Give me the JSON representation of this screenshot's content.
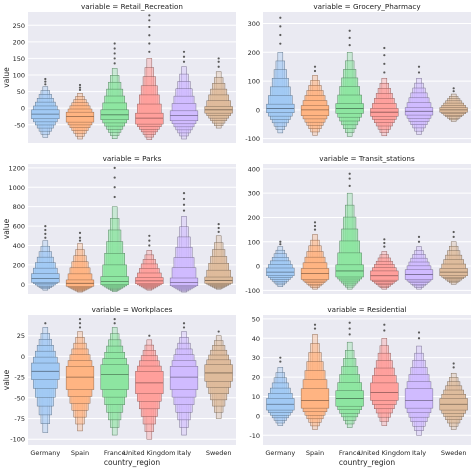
{
  "chart_data": [
    {
      "type": "boxen",
      "title": "variable = Retail_Recreation",
      "categories": [
        "Germany",
        "Spain",
        "France",
        "United Kingdom",
        "Italy",
        "Sweden"
      ],
      "ylabel": "value",
      "xlabel": "",
      "ylim": [
        -105,
        290
      ],
      "yticks": [
        -50,
        0,
        50,
        100,
        150,
        200,
        250
      ],
      "series": [
        {
          "median": -18,
          "q1": -32,
          "q3": -5,
          "lo": -88,
          "hi": 65,
          "outliers": [
            72,
            80,
            88
          ]
        },
        {
          "median": -25,
          "q1": -42,
          "q3": -12,
          "lo": -93,
          "hi": 45,
          "outliers": [
            55,
            62,
            70
          ]
        },
        {
          "median": -20,
          "q1": -35,
          "q3": -5,
          "lo": -92,
          "hi": 120,
          "outliers": [
            135,
            150,
            165,
            180,
            195
          ]
        },
        {
          "median": -30,
          "q1": -48,
          "q3": -15,
          "lo": -95,
          "hi": 150,
          "outliers": [
            170,
            195,
            220,
            245,
            265,
            280
          ]
        },
        {
          "median": -22,
          "q1": -38,
          "q3": -8,
          "lo": -93,
          "hi": 125,
          "outliers": [
            140,
            155,
            170
          ]
        },
        {
          "median": -5,
          "q1": -15,
          "q3": 5,
          "lo": -60,
          "hi": 110,
          "outliers": [
            125,
            140,
            150
          ]
        }
      ]
    },
    {
      "type": "boxen",
      "title": "variable = Grocery_Pharmacy",
      "categories": [
        "Germany",
        "Spain",
        "France",
        "United Kingdom",
        "Italy",
        "Sweden"
      ],
      "ylabel": "",
      "xlabel": "",
      "ylim": [
        -115,
        340
      ],
      "yticks": [
        -100,
        0,
        100,
        200,
        300
      ],
      "series": [
        {
          "median": 5,
          "q1": -10,
          "q3": 20,
          "lo": -80,
          "hi": 200,
          "outliers": [
            230,
            260,
            290,
            320
          ]
        },
        {
          "median": 0,
          "q1": -20,
          "q3": 15,
          "lo": -88,
          "hi": 120,
          "outliers": [
            135,
            150
          ]
        },
        {
          "median": 5,
          "q1": -12,
          "q3": 22,
          "lo": -92,
          "hi": 200,
          "outliers": [
            225,
            250,
            275
          ]
        },
        {
          "median": -8,
          "q1": -22,
          "q3": 5,
          "lo": -90,
          "hi": 110,
          "outliers": [
            130,
            160,
            190,
            215
          ]
        },
        {
          "median": -5,
          "q1": -18,
          "q3": 8,
          "lo": -85,
          "hi": 110,
          "outliers": [
            130,
            150
          ]
        },
        {
          "median": 0,
          "q1": -8,
          "q3": 8,
          "lo": -40,
          "hi": 55,
          "outliers": [
            65,
            75
          ]
        }
      ]
    },
    {
      "type": "boxen",
      "title": "variable = Parks",
      "categories": [
        "Germany",
        "Spain",
        "France",
        "United Kingdom",
        "Italy",
        "Sweden"
      ],
      "ylabel": "value",
      "xlabel": "",
      "ylim": [
        -100,
        1240
      ],
      "yticks": [
        0,
        200,
        400,
        600,
        800,
        1000,
        1200
      ],
      "series": [
        {
          "median": 60,
          "q1": 20,
          "q3": 110,
          "lo": -60,
          "hi": 450,
          "outliers": [
            480,
            520,
            560,
            600
          ]
        },
        {
          "median": 10,
          "q1": -20,
          "q3": 45,
          "lo": -80,
          "hi": 420,
          "outliers": [
            450,
            480,
            530
          ]
        },
        {
          "median": 30,
          "q1": -5,
          "q3": 80,
          "lo": -75,
          "hi": 800,
          "outliers": [
            900,
            1000,
            1100,
            1200
          ]
        },
        {
          "median": 35,
          "q1": 5,
          "q3": 70,
          "lo": -60,
          "hi": 350,
          "outliers": [
            400,
            450,
            500
          ]
        },
        {
          "median": 20,
          "q1": -15,
          "q3": 65,
          "lo": -80,
          "hi": 700,
          "outliers": [
            760,
            820,
            880,
            940
          ]
        },
        {
          "median": 40,
          "q1": 10,
          "q3": 75,
          "lo": -50,
          "hi": 500,
          "outliers": [
            540,
            580,
            620
          ]
        }
      ]
    },
    {
      "type": "boxen",
      "title": "variable = Transit_stations",
      "categories": [
        "Germany",
        "Spain",
        "France",
        "United Kingdom",
        "Italy",
        "Sweden"
      ],
      "ylabel": "",
      "xlabel": "",
      "ylim": [
        -115,
        420
      ],
      "yticks": [
        -100,
        0,
        100,
        200,
        300,
        400
      ],
      "series": [
        {
          "median": -25,
          "q1": -40,
          "q3": -8,
          "lo": -85,
          "hi": 80,
          "outliers": [
            90,
            100
          ]
        },
        {
          "median": -30,
          "q1": -55,
          "q3": -10,
          "lo": -95,
          "hi": 130,
          "outliers": [
            150,
            165,
            180
          ]
        },
        {
          "median": -20,
          "q1": -45,
          "q3": 5,
          "lo": -95,
          "hi": 300,
          "outliers": [
            330,
            360,
            380
          ]
        },
        {
          "median": -40,
          "q1": -58,
          "q3": -20,
          "lo": -95,
          "hi": 60,
          "outliers": [
            80,
            95,
            110
          ]
        },
        {
          "median": -35,
          "q1": -55,
          "q3": -15,
          "lo": -95,
          "hi": 80,
          "outliers": [
            100,
            120
          ]
        },
        {
          "median": -25,
          "q1": -40,
          "q3": -10,
          "lo": -75,
          "hi": 100,
          "outliers": [
            120,
            140
          ]
        }
      ]
    },
    {
      "type": "boxen",
      "title": "variable = Workplaces",
      "categories": [
        "Germany",
        "Spain",
        "France",
        "United Kingdom",
        "Italy",
        "Sweden"
      ],
      "ylabel": "value",
      "xlabel": "country_region",
      "ylim": [
        -107,
        50
      ],
      "yticks": [
        -100,
        -75,
        -50,
        -25,
        0,
        25
      ],
      "series": [
        {
          "median": -18,
          "q1": -28,
          "q3": -8,
          "lo": -92,
          "hi": 35,
          "outliers": [
            40
          ]
        },
        {
          "median": -25,
          "q1": -40,
          "q3": -12,
          "lo": -90,
          "hi": 30,
          "outliers": [
            35,
            40,
            45
          ]
        },
        {
          "median": -22,
          "q1": -40,
          "q3": -10,
          "lo": -95,
          "hi": 35,
          "outliers": [
            40,
            45
          ]
        },
        {
          "median": -32,
          "q1": -45,
          "q3": -18,
          "lo": -100,
          "hi": 20,
          "outliers": [
            25
          ]
        },
        {
          "median": -25,
          "q1": -40,
          "q3": -12,
          "lo": -95,
          "hi": 30,
          "outliers": [
            35,
            40
          ]
        },
        {
          "median": -20,
          "q1": -30,
          "q3": -10,
          "lo": -75,
          "hi": 25,
          "outliers": [
            30
          ]
        }
      ]
    },
    {
      "type": "boxen",
      "title": "variable = Residential",
      "categories": [
        "Germany",
        "Spain",
        "France",
        "United Kingdom",
        "Italy",
        "Sweden"
      ],
      "ylabel": "",
      "xlabel": "country_region",
      "ylim": [
        -15,
        52
      ],
      "yticks": [
        -10,
        0,
        10,
        20,
        30,
        40,
        50
      ],
      "series": [
        {
          "median": 6,
          "q1": 3,
          "q3": 9,
          "lo": -5,
          "hi": 25,
          "outliers": [
            28,
            30
          ]
        },
        {
          "median": 8,
          "q1": 4,
          "q3": 14,
          "lo": -7,
          "hi": 42,
          "outliers": [
            45,
            47
          ]
        },
        {
          "median": 9,
          "q1": 5,
          "q3": 13,
          "lo": -6,
          "hi": 38,
          "outliers": [
            42,
            45,
            48
          ]
        },
        {
          "median": 12,
          "q1": 8,
          "q3": 17,
          "lo": -5,
          "hi": 40,
          "outliers": [
            44,
            47
          ]
        },
        {
          "median": 8,
          "q1": 4,
          "q3": 14,
          "lo": -10,
          "hi": 36,
          "outliers": [
            40,
            43
          ]
        },
        {
          "median": 6,
          "q1": 3,
          "q3": 9,
          "lo": -7,
          "hi": 22,
          "outliers": [
            25,
            27
          ]
        }
      ]
    }
  ],
  "colors": {
    "series": [
      "#a1c9f4",
      "#ffb482",
      "#8de5a1",
      "#ff9f9b",
      "#d0bbff",
      "#debb9b"
    ],
    "panel_background": "#eaeaf2",
    "grid": "#ffffff",
    "outline": "#5a5a5a"
  }
}
